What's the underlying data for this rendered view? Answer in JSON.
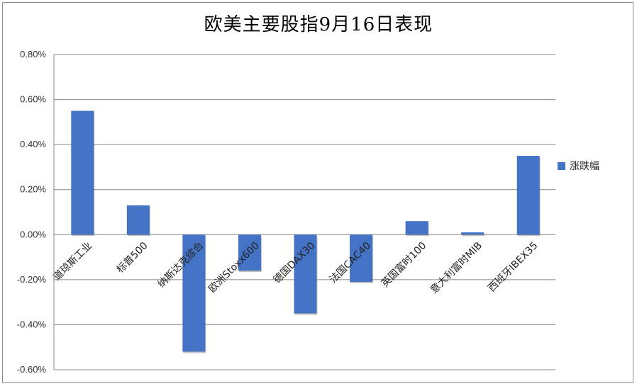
{
  "chart_data": {
    "type": "bar",
    "title": "欧美主要股指9月16日表现",
    "categories": [
      "道琼斯工业",
      "标普500",
      "纳斯达克综合",
      "欧洲Stoxx600",
      "德国DAX30",
      "法国CAC40",
      "英国富时100",
      "意大利富时MIB",
      "西班牙IBEX35"
    ],
    "series": [
      {
        "name": "涨跌幅",
        "values": [
          0.55,
          0.13,
          -0.52,
          -0.16,
          -0.35,
          -0.21,
          0.06,
          0.01,
          0.35
        ]
      }
    ],
    "yticks": [
      "0.80%",
      "0.60%",
      "0.40%",
      "0.20%",
      "0.00%",
      "-0.20%",
      "-0.40%",
      "-0.60%"
    ],
    "ylim": [
      -0.6,
      0.8
    ],
    "grid": true,
    "legend_position": "right",
    "bar_color": "#4472c4",
    "grid_color": "#878787"
  }
}
